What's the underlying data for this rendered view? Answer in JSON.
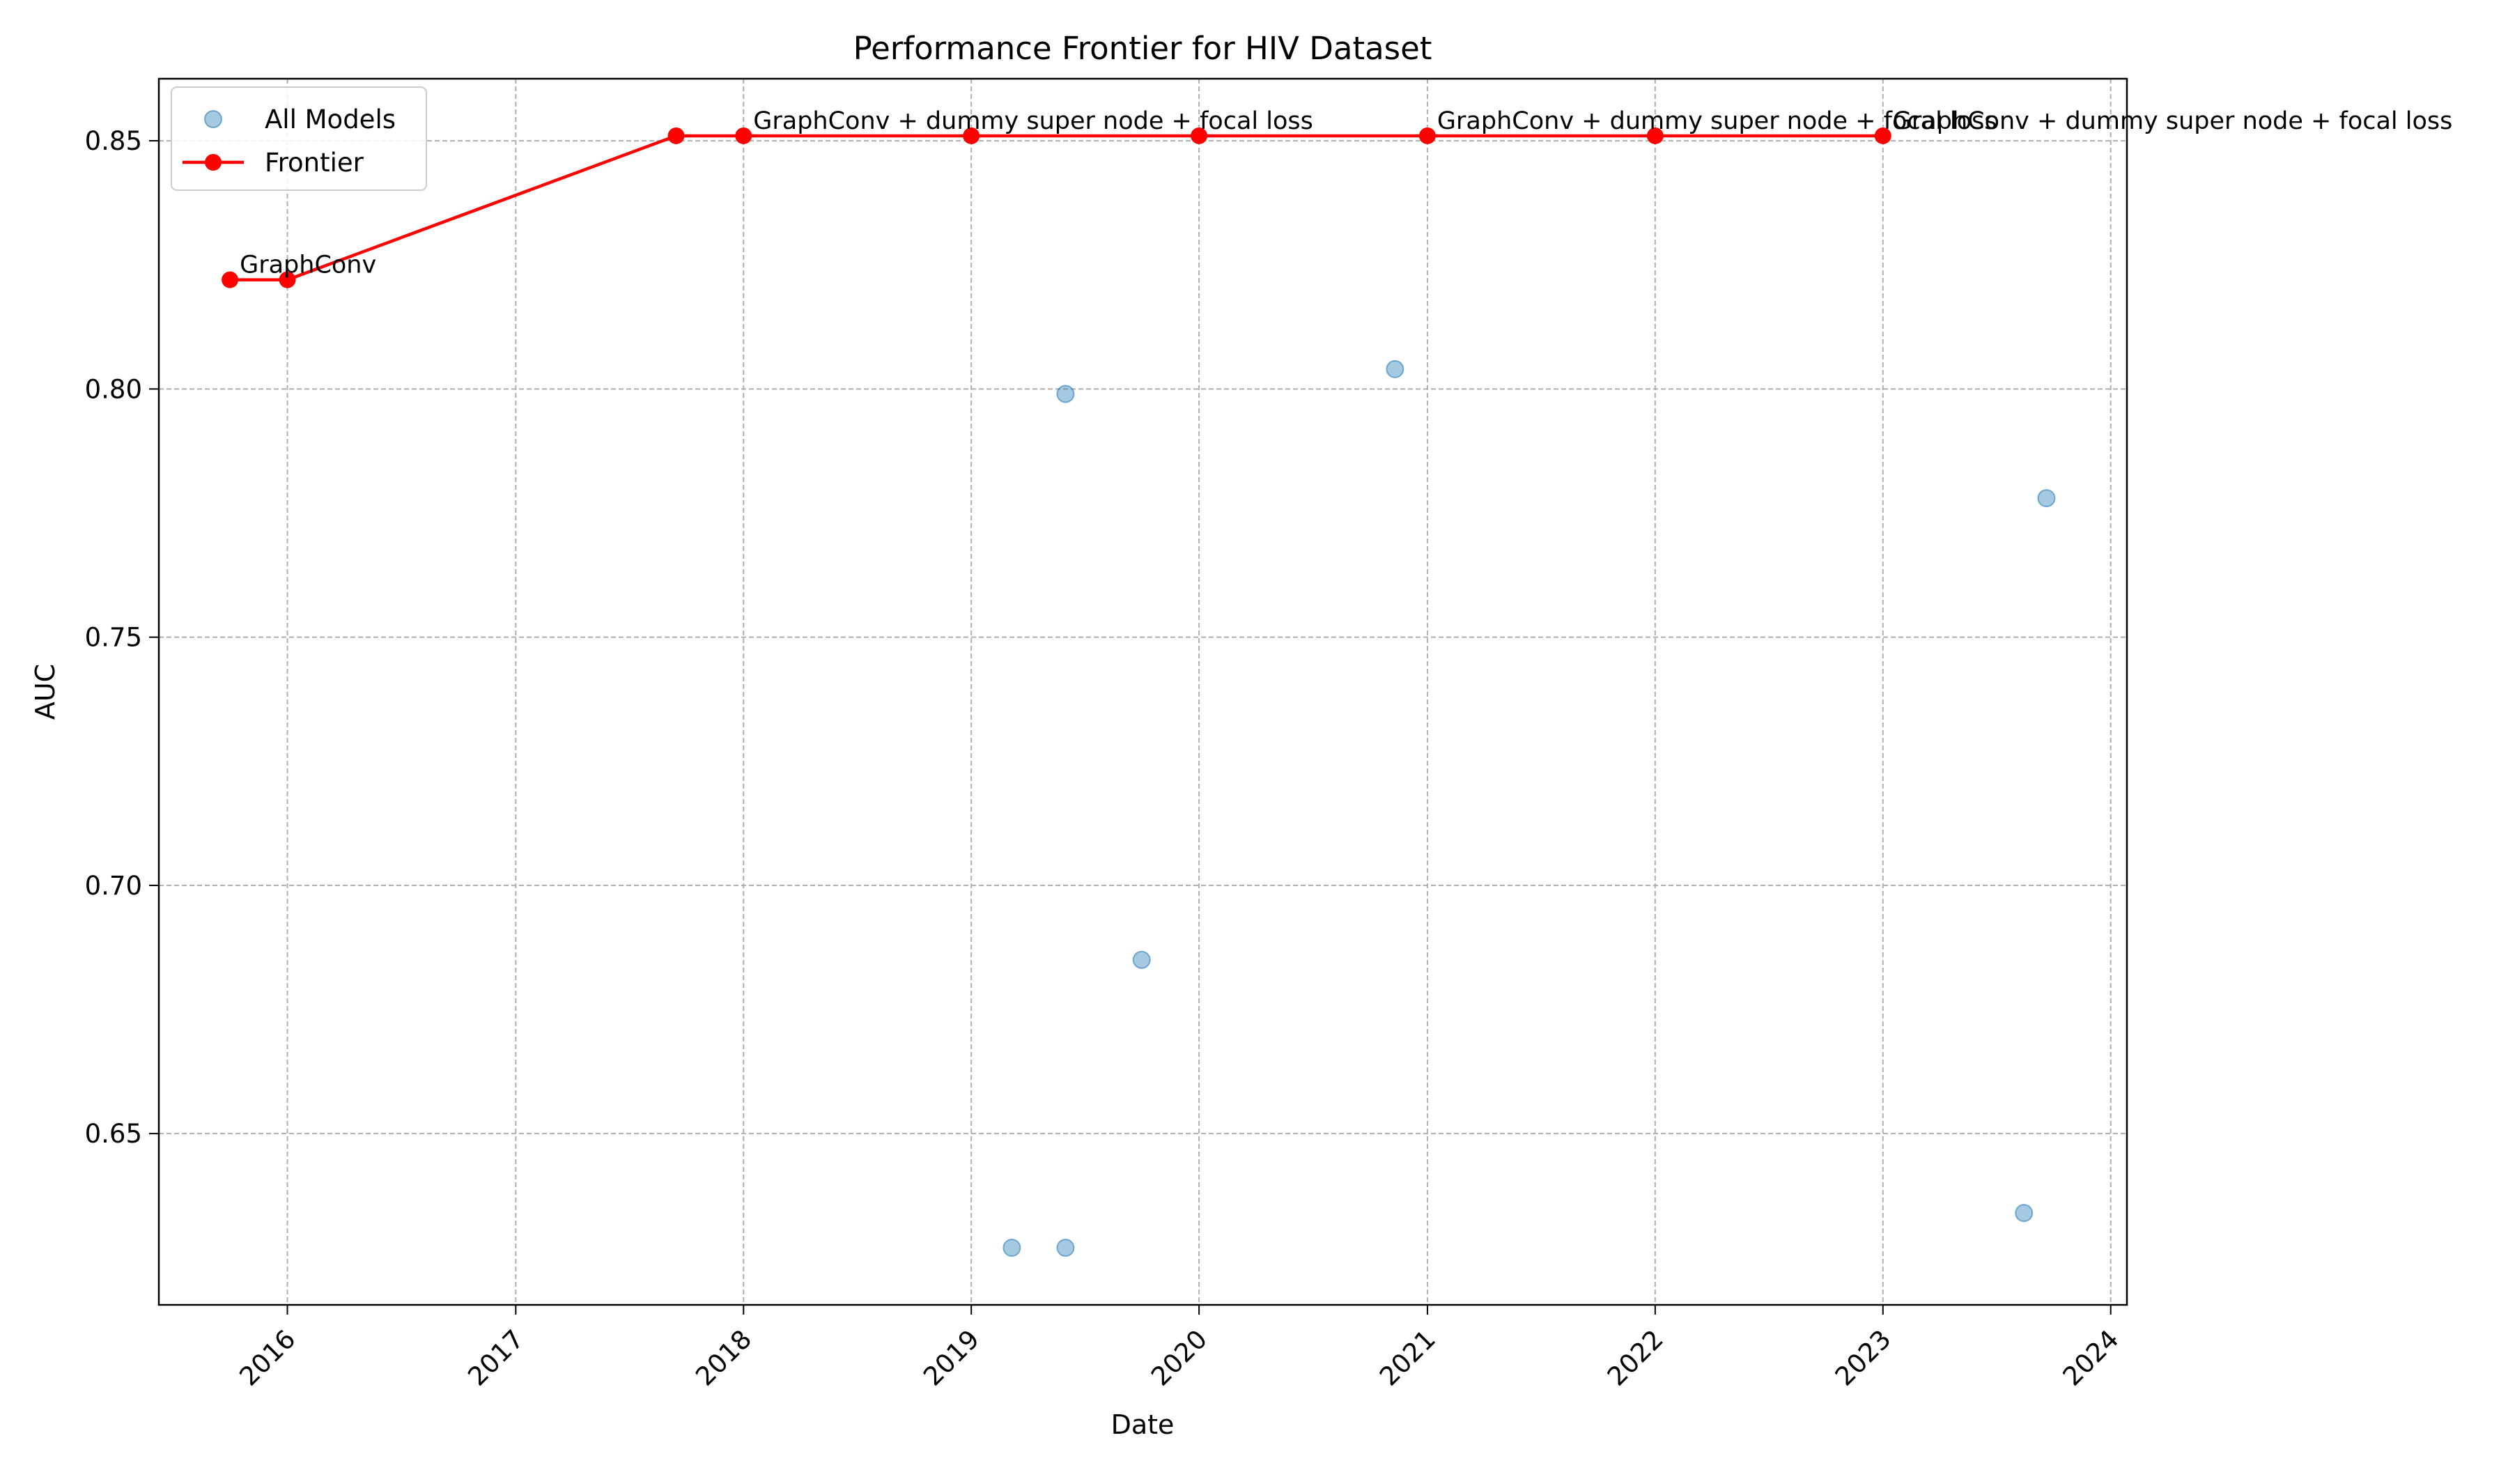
{
  "chart_data": {
    "type": "scatter",
    "title": "Performance Frontier for HIV Dataset",
    "xlabel": "Date",
    "ylabel": "AUC",
    "x_axis_type": "date",
    "xlim": [
      "2015-06-09",
      "2024-01-27"
    ],
    "ylim": [
      0.6155,
      0.8625
    ],
    "x_ticks": [
      "2016",
      "2017",
      "2018",
      "2019",
      "2020",
      "2021",
      "2022",
      "2023",
      "2024"
    ],
    "y_ticks": [
      "0.65",
      "0.70",
      "0.75",
      "0.80",
      "0.85"
    ],
    "grid": true,
    "legend": {
      "placement": "upper-left",
      "entries": [
        "All Models",
        "Frontier"
      ]
    },
    "colors": {
      "all_models": "#1f77b4",
      "frontier": "#ff0000"
    },
    "series": [
      {
        "name": "All Models",
        "type": "scatter",
        "points": [
          {
            "x": "2019-03-07",
            "y": 0.627
          },
          {
            "x": "2019-06-01",
            "y": 0.627
          },
          {
            "x": "2019-06-01",
            "y": 0.799
          },
          {
            "x": "2019-10-01",
            "y": 0.685
          },
          {
            "x": "2020-11-10",
            "y": 0.804
          },
          {
            "x": "2023-08-15",
            "y": 0.634
          },
          {
            "x": "2023-09-20",
            "y": 0.778
          }
        ]
      },
      {
        "name": "Frontier",
        "type": "line",
        "points": [
          {
            "x": "2015-10-01",
            "y": 0.822
          },
          {
            "x": "2016-01-01",
            "y": 0.822
          },
          {
            "x": "2017-09-15",
            "y": 0.851
          },
          {
            "x": "2018-01-01",
            "y": 0.851
          },
          {
            "x": "2019-01-01",
            "y": 0.851
          },
          {
            "x": "2020-01-01",
            "y": 0.851
          },
          {
            "x": "2021-01-01",
            "y": 0.851
          },
          {
            "x": "2022-01-01",
            "y": 0.851
          },
          {
            "x": "2023-01-01",
            "y": 0.851
          }
        ]
      }
    ],
    "annotations": [
      {
        "text": "GraphConv",
        "x": "2015-10-01",
        "y": 0.822
      },
      {
        "text": "GraphConv + dummy super node + focal loss",
        "x": "2018-01-01",
        "y": 0.851
      },
      {
        "text": "GraphConv + dummy super node + focal loss",
        "x": "2021-01-01",
        "y": 0.851
      },
      {
        "text": "GraphConv + dummy super node + focal loss",
        "x": "2023-01-01",
        "y": 0.851
      }
    ]
  }
}
